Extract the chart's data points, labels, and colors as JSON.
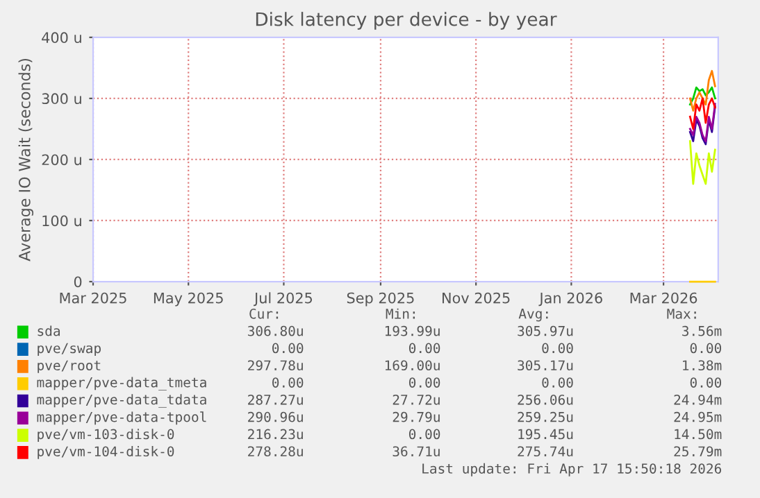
{
  "chart_data": {
    "type": "line",
    "title": "Disk latency per device - by year",
    "ylabel": "Average IO Wait (seconds)",
    "x": [
      "2026-03-18",
      "2026-03-20",
      "2026-03-22",
      "2026-03-24",
      "2026-03-26",
      "2026-03-28",
      "2026-03-30",
      "2026-04-01",
      "2026-04-03"
    ],
    "series": [
      {
        "name": "sda",
        "color": "#00cc00",
        "values": [
          290,
          300,
          318,
          312,
          315,
          305,
          310,
          318,
          300
        ]
      },
      {
        "name": "pve/swap",
        "color": "#0066b3",
        "values": [
          null,
          null,
          null,
          null,
          null,
          null,
          null,
          null,
          null
        ]
      },
      {
        "name": "pve/root",
        "color": "#ff8000",
        "values": [
          300,
          280,
          300,
          310,
          300,
          290,
          330,
          345,
          320
        ]
      },
      {
        "name": "mapper/pve-data_tmeta",
        "color": "#ffcc00",
        "values": [
          0,
          0,
          0,
          0,
          0,
          0,
          0,
          0,
          0
        ]
      },
      {
        "name": "mapper/pve-data_tdata",
        "color": "#330099",
        "values": [
          245,
          230,
          265,
          255,
          235,
          225,
          265,
          245,
          287
        ]
      },
      {
        "name": "mapper/pve-data-tpool",
        "color": "#990099",
        "values": [
          250,
          240,
          270,
          260,
          240,
          230,
          270,
          250,
          291
        ]
      },
      {
        "name": "pve/vm-103-disk-0",
        "color": "#ccff00",
        "values": [
          230,
          160,
          210,
          190,
          175,
          160,
          210,
          180,
          216
        ]
      },
      {
        "name": "pve/vm-104-disk-0",
        "color": "#ff0000",
        "values": [
          270,
          250,
          290,
          280,
          300,
          260,
          290,
          300,
          285
        ]
      }
    ],
    "xlim": [
      "2025-03-01",
      "2026-04-05"
    ],
    "xticks": [
      {
        "value": "2025-03-01",
        "label": "Mar 2025"
      },
      {
        "value": "2025-05-01",
        "label": "May 2025"
      },
      {
        "value": "2025-07-01",
        "label": "Jul 2025"
      },
      {
        "value": "2025-09-01",
        "label": "Sep 2025"
      },
      {
        "value": "2025-11-01",
        "label": "Nov 2025"
      },
      {
        "value": "2026-01-01",
        "label": "Jan 2026"
      },
      {
        "value": "2026-03-01",
        "label": "Mar 2026"
      }
    ],
    "ylim": [
      0,
      400
    ],
    "yticks": [
      0,
      {
        "value": 100,
        "label": "100 u"
      },
      {
        "value": 200,
        "label": "200 u"
      },
      {
        "value": 300,
        "label": "300 u"
      },
      {
        "value": 400,
        "label": "400 u"
      }
    ],
    "grid": true,
    "legend": "bottom",
    "marker": "none",
    "line_style": "solid",
    "annotations": [
      "Cur:",
      "Min:",
      "Avg:",
      "Max:",
      "306.80u",
      "193.99u",
      "305.97u",
      "3.56m",
      "0.00",
      "0.00",
      "0.00",
      "0.00",
      "297.78u",
      "169.00u",
      "305.17u",
      "1.38m",
      "0.00",
      "0.00",
      "0.00",
      "0.00",
      "287.27u",
      "27.72u",
      "256.06u",
      "24.94m",
      "290.96u",
      "29.79u",
      "259.25u",
      "24.95m",
      "216.23u",
      "0.00",
      "195.45u",
      "14.50m",
      "278.28u",
      "36.71u",
      "275.74u",
      "25.79m",
      "Last update: Fri Apr 17 15:50:18 2026"
    ]
  }
}
